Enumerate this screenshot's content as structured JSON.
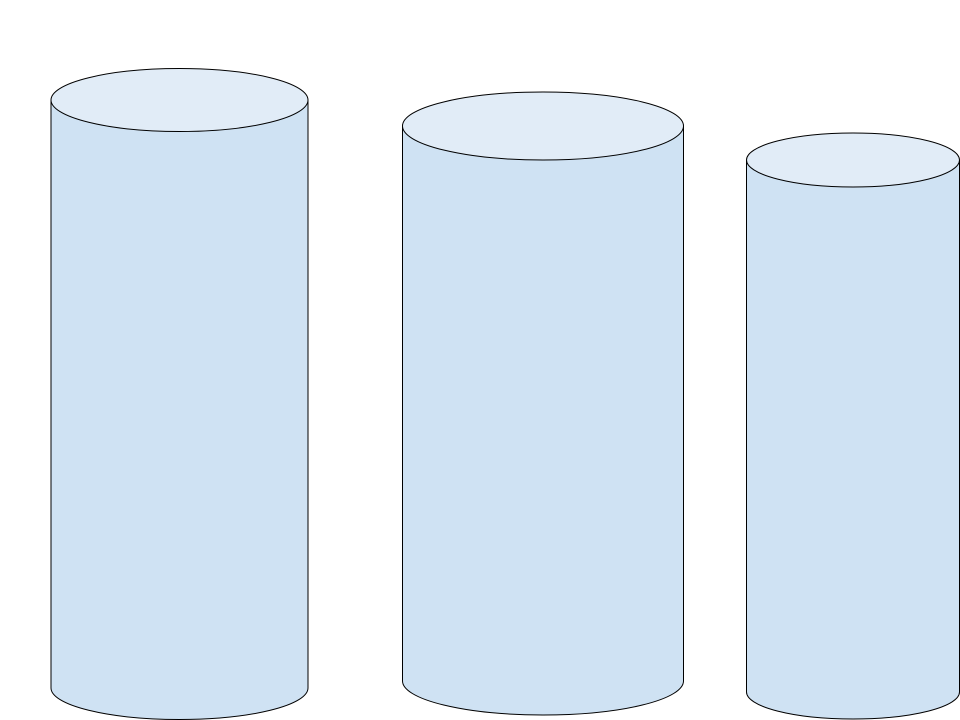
{
  "colors": {
    "background": "#ffffff",
    "body_fill": "#cfe2f3",
    "top_fill": "#e1ecf7",
    "outline": "#000000"
  },
  "shapes": [
    {
      "type": "cylinder",
      "name": "cylinder-1"
    },
    {
      "type": "cylinder",
      "name": "cylinder-2"
    },
    {
      "type": "cylinder",
      "name": "cylinder-3"
    }
  ]
}
